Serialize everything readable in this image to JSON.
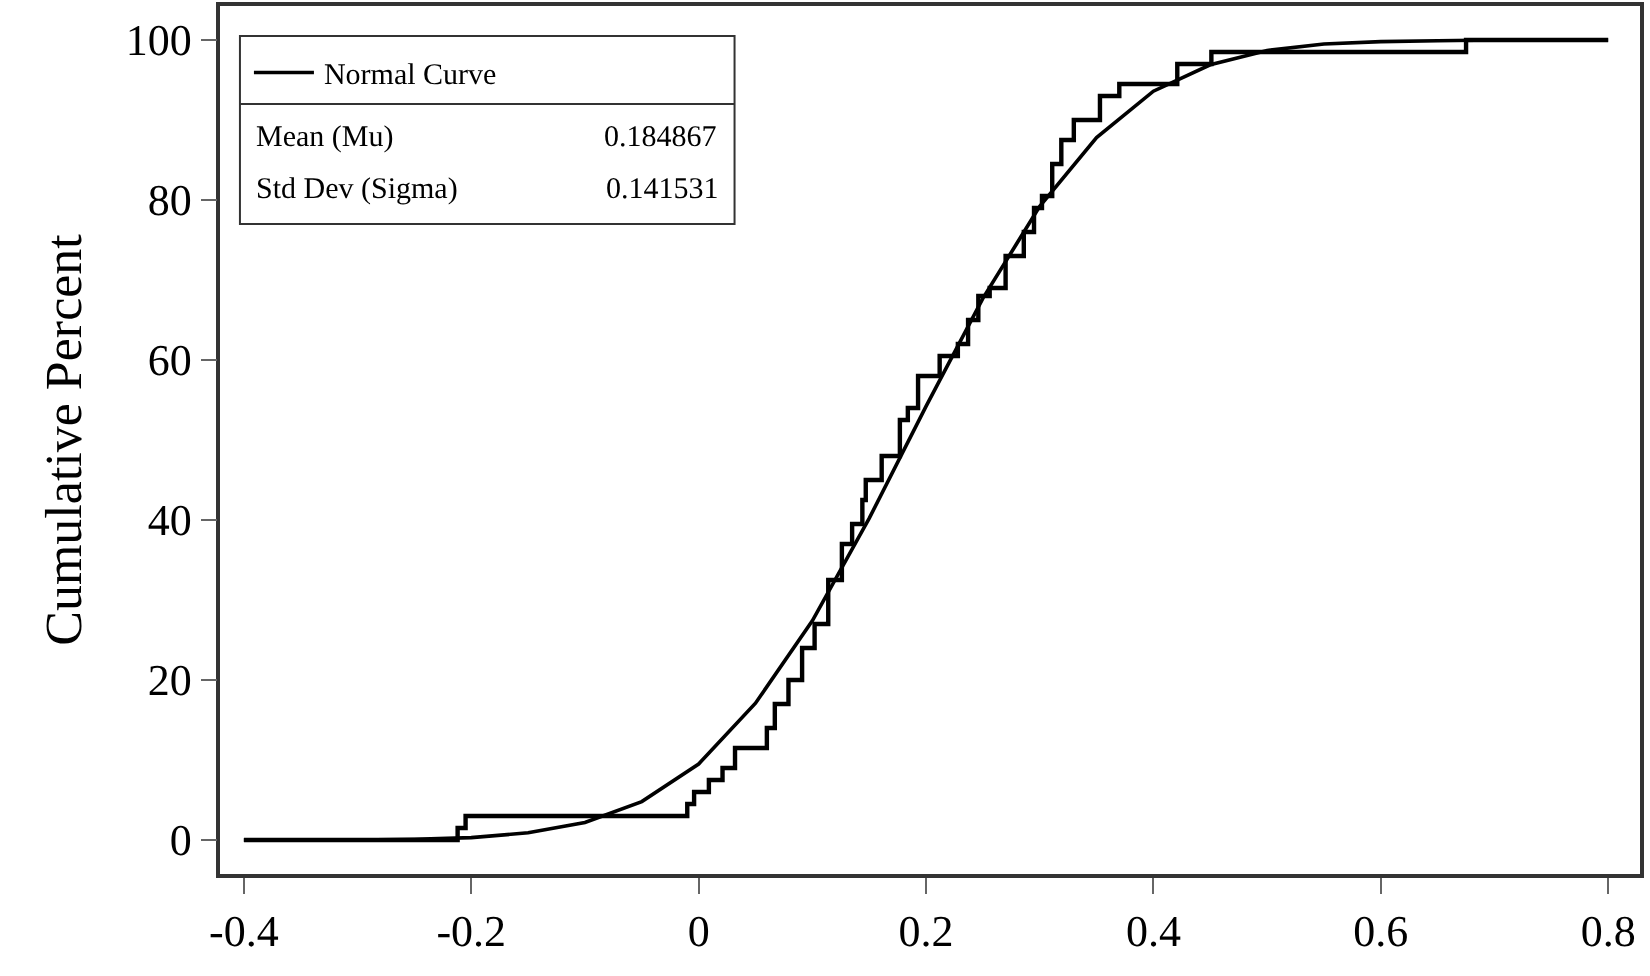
{
  "chart_data": {
    "type": "line",
    "ylabel": "Cumulative Percent",
    "xlim": [
      -0.421,
      0.828
    ],
    "ylim": [
      -4.25,
      104.25
    ],
    "xticks": [
      -0.4,
      -0.2,
      0,
      0.2,
      0.4,
      0.6,
      0.8
    ],
    "yticks": [
      0,
      20,
      40,
      60,
      80,
      100
    ],
    "grid": false,
    "legend": "top left",
    "marker": "none",
    "line_style": "solid",
    "series": [
      {
        "type": "step",
        "color": "#000000",
        "x": [
          -0.4,
          -0.212,
          -0.205,
          -0.01,
          -0.004,
          0.009,
          0.021,
          0.032,
          0.06,
          0.067,
          0.079,
          0.091,
          0.102,
          0.114,
          0.126,
          0.135,
          0.144,
          0.147,
          0.161,
          0.177,
          0.184,
          0.193,
          0.212,
          0.228,
          0.237,
          0.246,
          0.256,
          0.27,
          0.286,
          0.295,
          0.302,
          0.311,
          0.319,
          0.33,
          0.353,
          0.37,
          0.421,
          0.451,
          0.675,
          0.8
        ],
        "values": [
          0,
          1.5,
          3,
          4.5,
          6,
          7.5,
          9,
          11.5,
          14,
          17,
          20,
          24,
          27,
          32.5,
          37,
          39.5,
          42.5,
          45,
          48,
          52.5,
          54,
          58,
          60.5,
          62,
          65,
          68,
          69,
          73,
          76,
          79,
          80.5,
          84.5,
          87.5,
          90,
          93,
          94.5,
          97,
          98.5,
          100,
          100
        ]
      },
      {
        "name": "Normal Curve",
        "color": "#000000",
        "x": [
          -0.4,
          -0.35,
          -0.3,
          -0.25,
          -0.2,
          -0.15,
          -0.1,
          -0.05,
          0,
          0.05,
          0.1,
          0.15,
          0.2,
          0.25,
          0.3,
          0.35,
          0.4,
          0.45,
          0.5,
          0.55,
          0.6,
          0.65,
          0.7,
          0.75,
          0.8
        ],
        "values": [
          0,
          0,
          0,
          0.1,
          0.3,
          0.9,
          2.2,
          4.8,
          9.5,
          17.1,
          27.4,
          40.2,
          54.2,
          67.7,
          79.2,
          87.8,
          93.6,
          96.9,
          98.7,
          99.5,
          99.8,
          99.9,
          100,
          100,
          100
        ]
      }
    ],
    "annotations": [
      "Mean (Mu)",
      "0.184867",
      "Std Dev (Sigma)",
      "0.141531"
    ]
  }
}
